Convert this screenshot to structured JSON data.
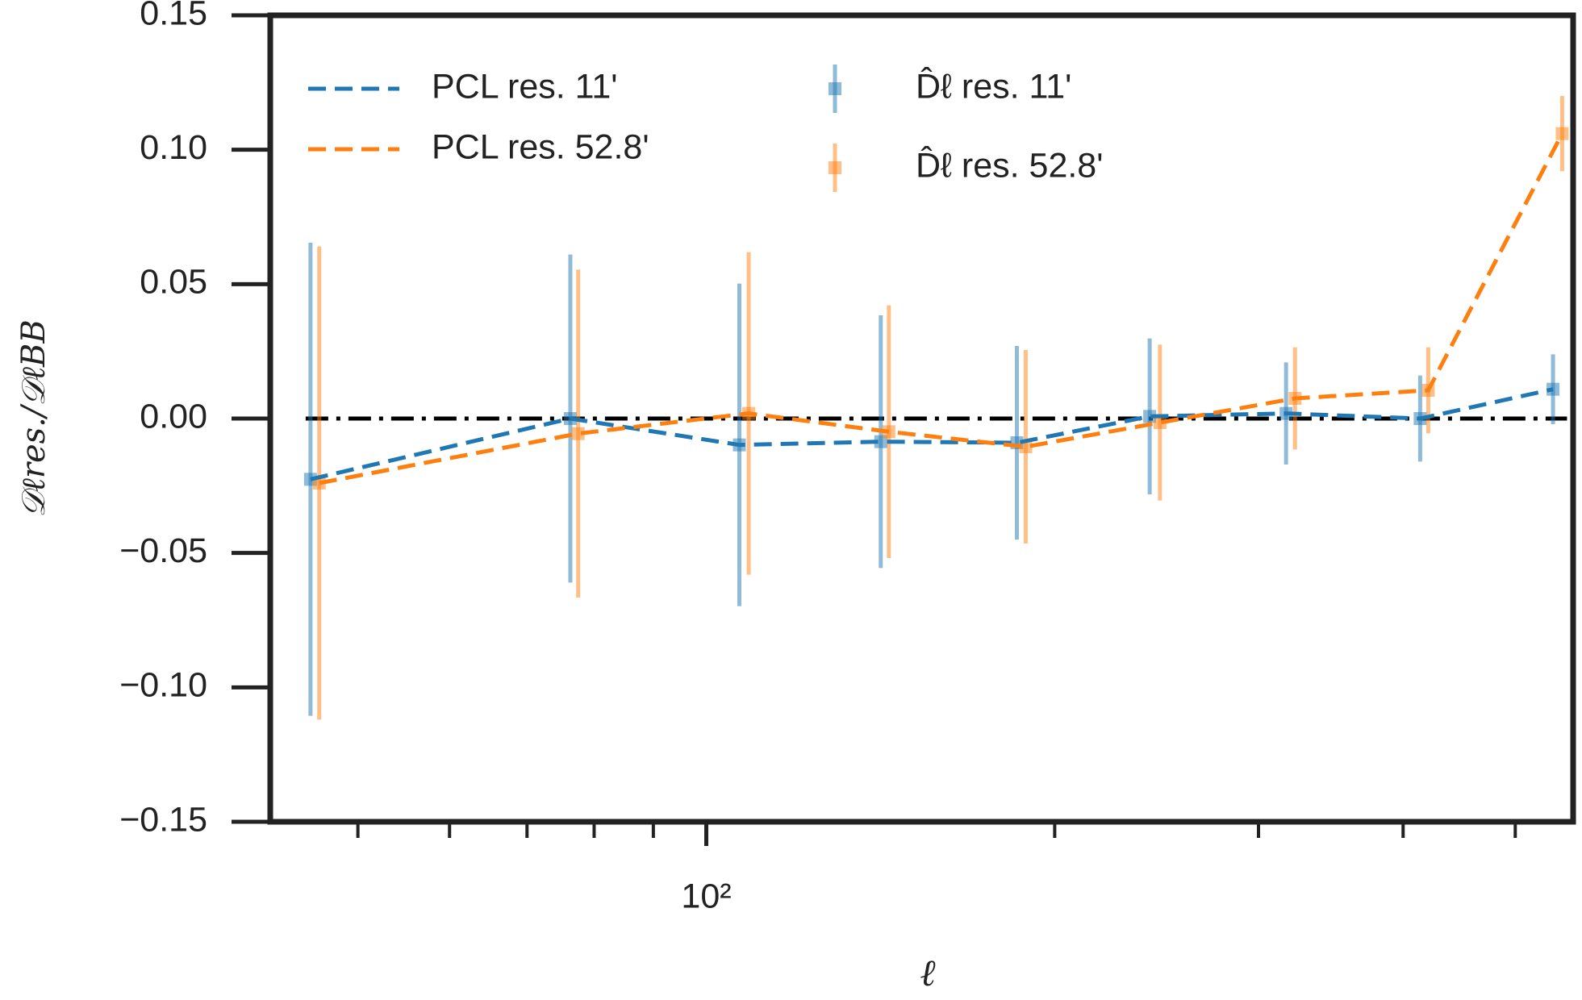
{
  "chart_data": {
    "type": "line",
    "xlabel": "ℓ",
    "ylabel": "𝒟ℓres./𝒟ℓBB",
    "xscale": "log",
    "xlim": [
      42,
      561
    ],
    "xticks": [
      {
        "value": 100,
        "label": "10²"
      }
    ],
    "xminorticks": [
      50,
      60,
      70,
      80,
      90,
      200,
      300,
      400,
      500
    ],
    "ylim": [
      -0.15,
      0.15
    ],
    "yticks": [
      {
        "value": -0.15,
        "label": "−0.15"
      },
      {
        "value": -0.1,
        "label": "−0.10"
      },
      {
        "value": -0.05,
        "label": "−0.05"
      },
      {
        "value": 0,
        "label": "0.00"
      },
      {
        "value": 0.05,
        "label": "0.05"
      },
      {
        "value": 0.1,
        "label": "0.10"
      },
      {
        "value": 0.15,
        "label": "0.15"
      }
    ],
    "reference_line": 0,
    "grid": false,
    "legend": "upper left",
    "series": [
      {
        "name": "PCL res. 11'",
        "kind": "line",
        "color": "#1f77b4",
        "x": [
          45.5,
          76.3,
          106.8,
          141.5,
          185.5,
          241.6,
          316.9,
          413.8,
          539
        ],
        "values": [
          -0.0226,
          0.0,
          -0.0098,
          -0.0086,
          -0.009,
          0.0008,
          0.0019,
          0.0,
          0.0109
        ]
      },
      {
        "name": "PCL res. 52.8'",
        "kind": "line",
        "color": "#ff7f0e",
        "x": [
          46.3,
          77.5,
          108.8,
          143.8,
          188.8,
          246.6,
          322.6,
          420.5,
          548.9
        ],
        "values": [
          -0.024,
          -0.0056,
          0.0019,
          -0.0049,
          -0.0105,
          -0.0015,
          0.0075,
          0.0105,
          0.106
        ]
      },
      {
        "name": "D̂ℓ res. 11'",
        "kind": "errorbar",
        "color": "#1f77b4",
        "x": [
          45.5,
          76.3,
          106.8,
          141.5,
          185.5,
          241.6,
          316.9,
          413.8,
          539
        ],
        "values": [
          -0.0226,
          0.0,
          -0.0098,
          -0.0086,
          -0.009,
          0.0008,
          0.0019,
          0.0,
          0.0109
        ],
        "errors": [
          0.088,
          0.061,
          0.06,
          0.047,
          0.036,
          0.029,
          0.019,
          0.016,
          0.013
        ]
      },
      {
        "name": "D̂ℓ res. 52.8'",
        "kind": "errorbar",
        "color": "#ff7f0e",
        "x": [
          46.3,
          77.5,
          108.8,
          143.8,
          188.8,
          246.6,
          322.6,
          420.5,
          548.9
        ],
        "values": [
          -0.024,
          -0.0056,
          0.0019,
          -0.0049,
          -0.0105,
          -0.0015,
          0.0075,
          0.0105,
          0.106
        ],
        "errors": [
          0.088,
          0.061,
          0.06,
          0.047,
          0.036,
          0.029,
          0.019,
          0.016,
          0.014
        ]
      }
    ]
  }
}
